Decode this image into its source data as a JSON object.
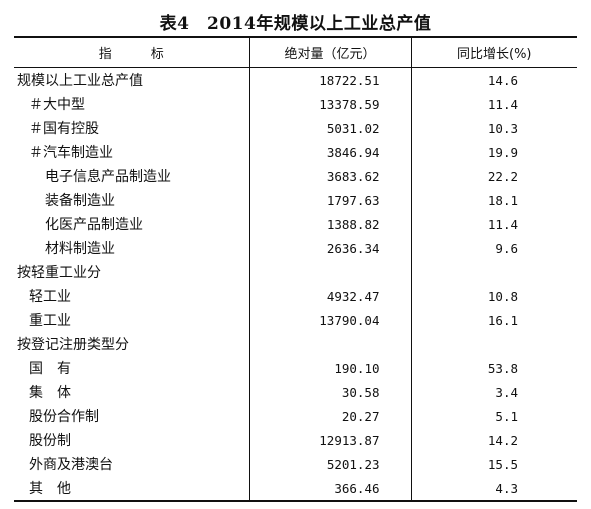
{
  "title": "表4　2014年规模以上工业总产值",
  "header": {
    "indicator": "指　　　标",
    "absolute": "绝对量（亿元）",
    "growth": "同比增长(%)"
  },
  "rows": [
    {
      "name": "规模以上工业总产值",
      "value": "18722.51",
      "growth": "14.6",
      "level": 0
    },
    {
      "name": "＃大中型",
      "value": "13378.59",
      "growth": "11.4",
      "level": 1
    },
    {
      "name": "＃国有控股",
      "value": "5031.02",
      "growth": "10.3",
      "level": 1
    },
    {
      "name": "＃汽车制造业",
      "value": "3846.94",
      "growth": "19.9",
      "level": 1
    },
    {
      "name": "电子信息产品制造业",
      "value": "3683.62",
      "growth": "22.2",
      "level": 2
    },
    {
      "name": "装备制造业",
      "value": "1797.63",
      "growth": "18.1",
      "level": 2
    },
    {
      "name": "化医产品制造业",
      "value": "1388.82",
      "growth": "11.4",
      "level": 2
    },
    {
      "name": "材料制造业",
      "value": "2636.34",
      "growth": "9.6",
      "level": 2
    },
    {
      "name": "按轻重工业分",
      "value": "",
      "growth": "",
      "level": 0
    },
    {
      "name": "轻工业",
      "value": "4932.47",
      "growth": "10.8",
      "level": 1
    },
    {
      "name": "重工业",
      "value": "13790.04",
      "growth": "16.1",
      "level": 1
    },
    {
      "name": "按登记注册类型分",
      "value": "",
      "growth": "",
      "level": 0
    },
    {
      "name": "国　有",
      "value": "190.10",
      "growth": "53.8",
      "level": 1
    },
    {
      "name": "集　体",
      "value": "30.58",
      "growth": "3.4",
      "level": 1
    },
    {
      "name": "股份合作制",
      "value": "20.27",
      "growth": "5.1",
      "level": 1
    },
    {
      "name": "股份制",
      "value": "12913.87",
      "growth": "14.2",
      "level": 1
    },
    {
      "name": "外商及港澳台",
      "value": "5201.23",
      "growth": "15.5",
      "level": 1
    },
    {
      "name": "其　他",
      "value": "366.46",
      "growth": "4.3",
      "level": 1
    }
  ]
}
